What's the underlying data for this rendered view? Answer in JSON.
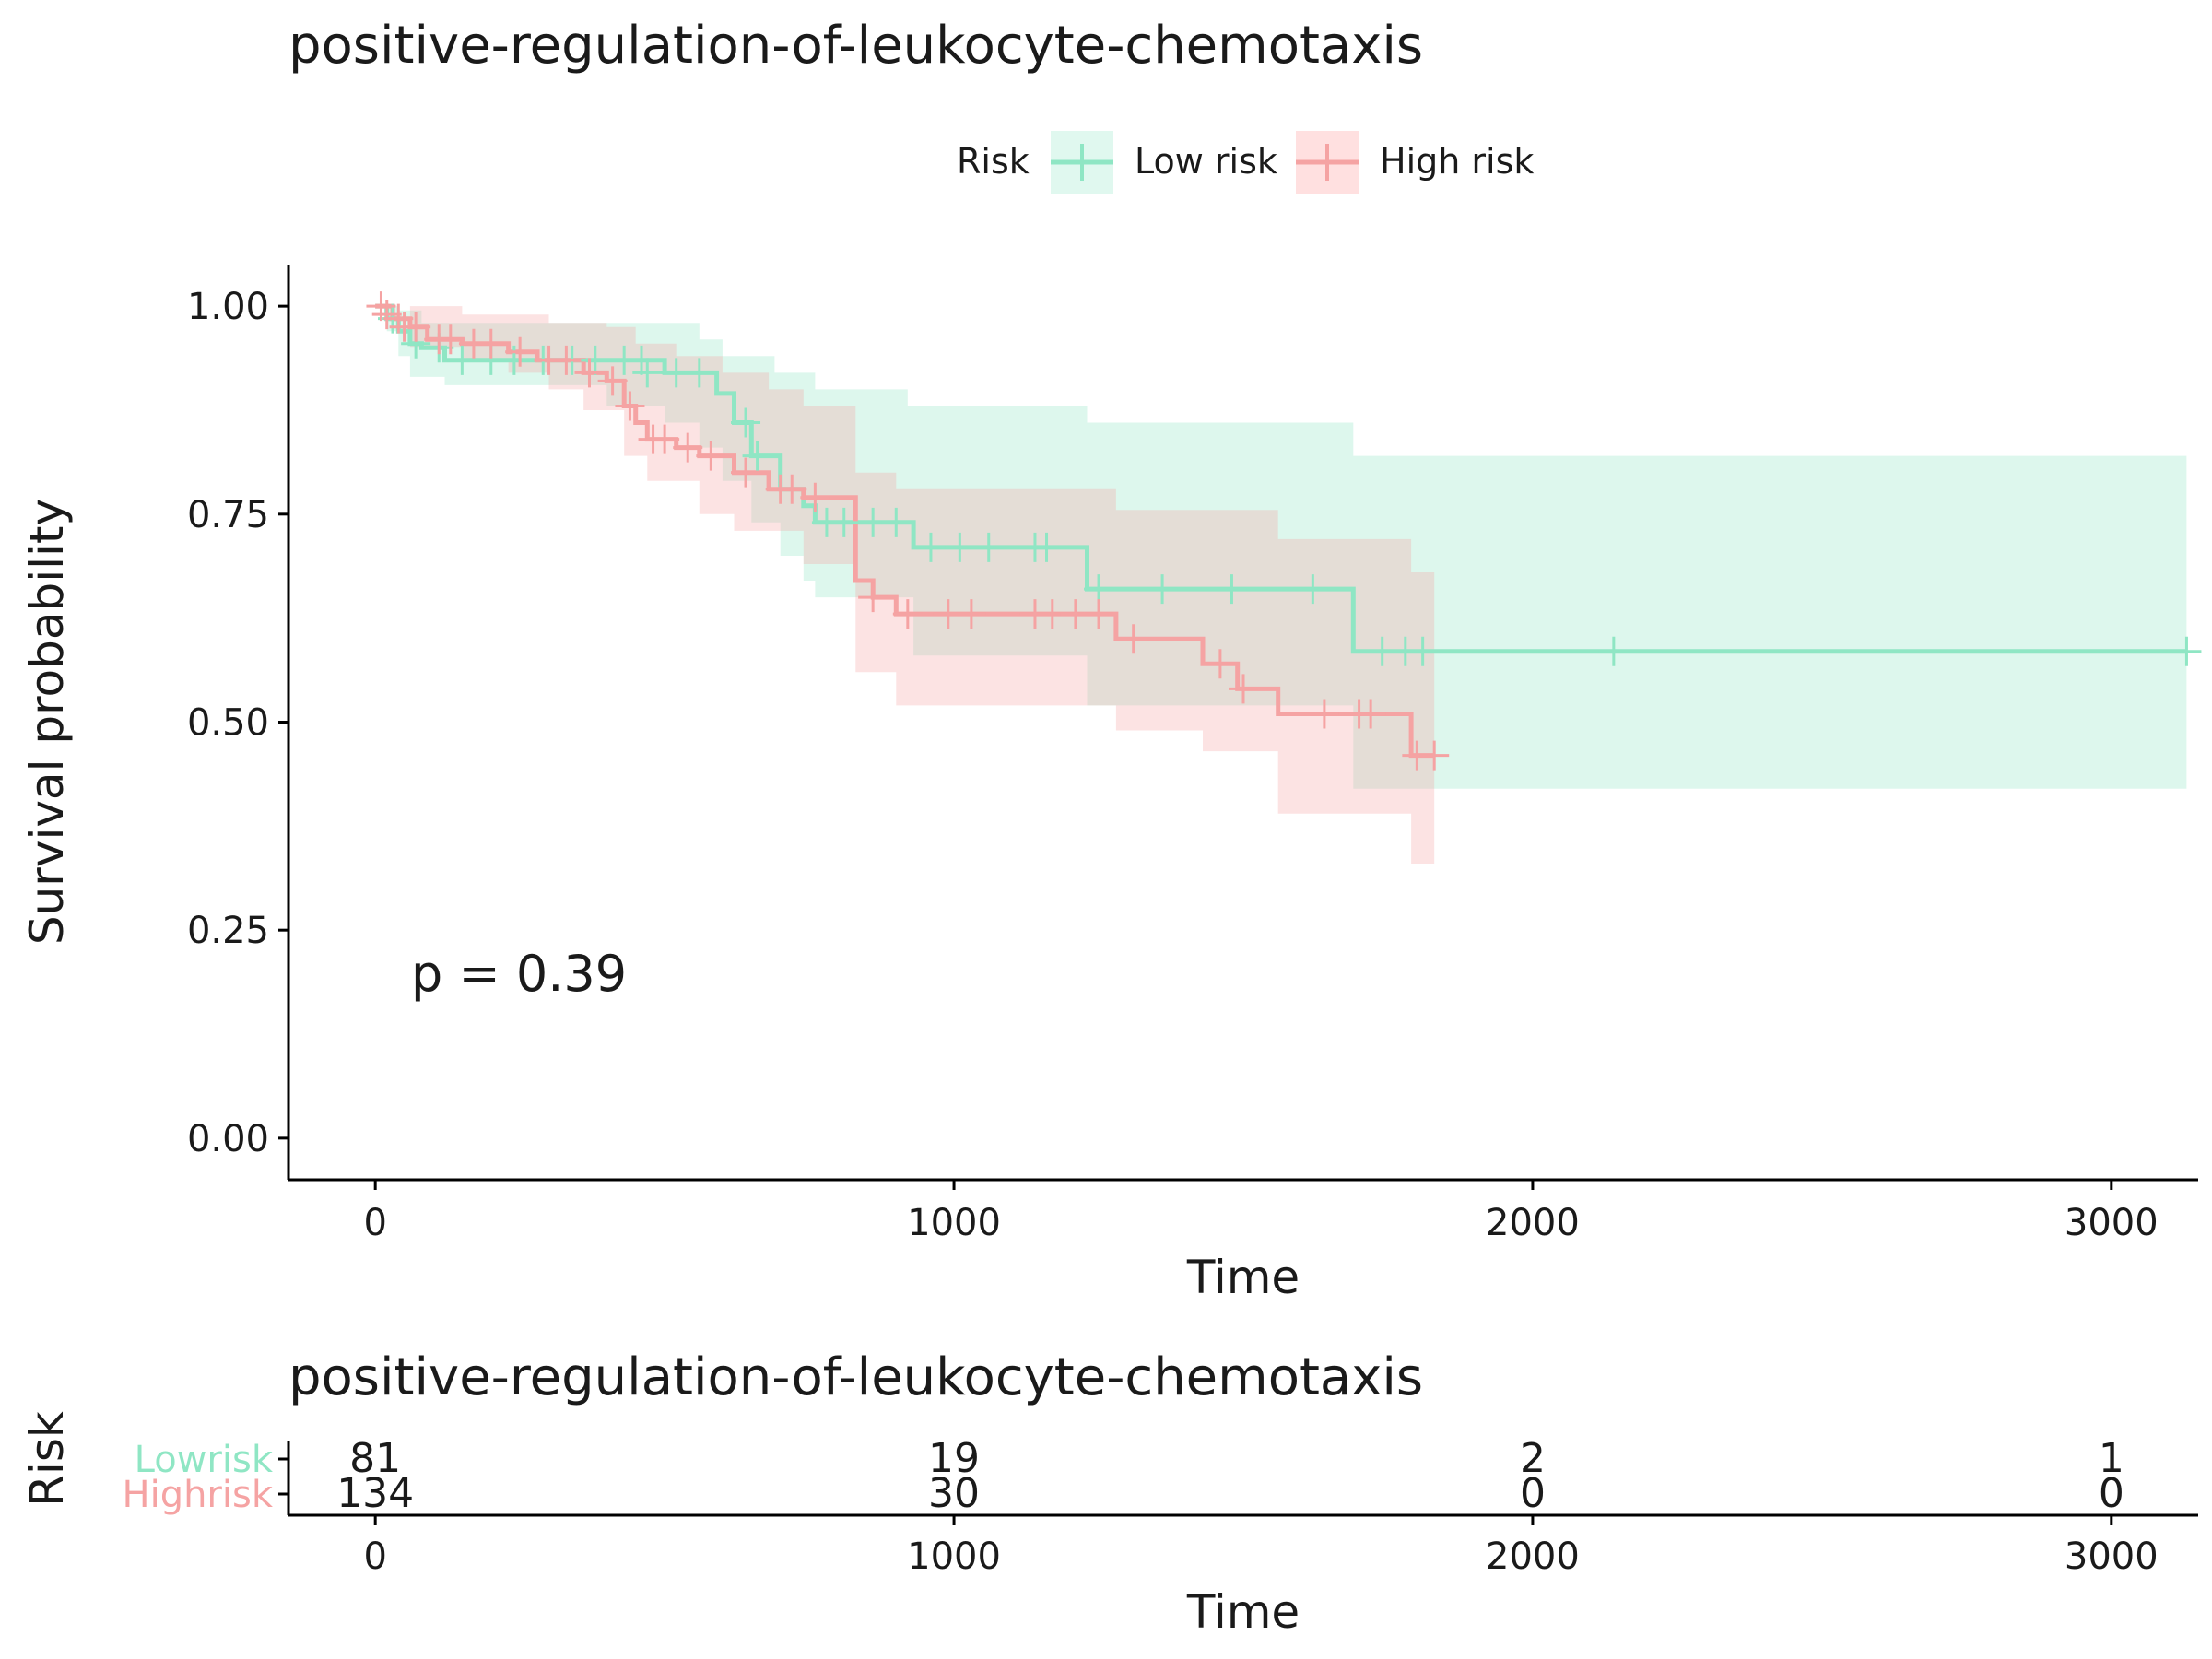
{
  "chart_data": {
    "type": "line",
    "subtype": "kaplan-meier",
    "title": "positive-regulation-of-leukocyte-chemotaxis",
    "xlabel": "Time",
    "ylabel": "Survival probability",
    "xlim": [
      -150,
      3150
    ],
    "ylim": [
      -0.05,
      1.05
    ],
    "xticks": [
      0,
      1000,
      2000,
      3000
    ],
    "yticks": [
      0.0,
      0.25,
      0.5,
      0.75,
      1.0
    ],
    "ytick_labels": [
      "0.00",
      "0.25",
      "0.50",
      "0.75",
      "1.00"
    ],
    "grid": false,
    "legend": {
      "title": "Risk",
      "position": "top"
    },
    "annotation": "p = 0.39",
    "series": [
      {
        "name": "Low risk",
        "color": "#8fe6c4",
        "band_color": "#e0f8ef",
        "steps": [
          [
            0,
            1.0
          ],
          [
            20,
            0.985
          ],
          [
            40,
            0.97
          ],
          [
            60,
            0.955
          ],
          [
            80,
            0.95
          ],
          [
            120,
            0.935
          ],
          [
            400,
            0.935
          ],
          [
            500,
            0.92
          ],
          [
            590,
            0.895
          ],
          [
            620,
            0.86
          ],
          [
            650,
            0.82
          ],
          [
            700,
            0.78
          ],
          [
            740,
            0.76
          ],
          [
            760,
            0.74
          ],
          [
            930,
            0.71
          ],
          [
            1230,
            0.66
          ],
          [
            1690,
            0.585
          ],
          [
            3130,
            0.585
          ]
        ],
        "upper": [
          [
            0,
            1.0
          ],
          [
            40,
            0.995
          ],
          [
            80,
            0.98
          ],
          [
            300,
            0.98
          ],
          [
            450,
            0.98
          ],
          [
            560,
            0.96
          ],
          [
            600,
            0.94
          ],
          [
            690,
            0.92
          ],
          [
            760,
            0.9
          ],
          [
            920,
            0.88
          ],
          [
            1230,
            0.86
          ],
          [
            1690,
            0.82
          ],
          [
            3130,
            0.82
          ]
        ],
        "lower": [
          [
            0,
            1.0
          ],
          [
            20,
            0.97
          ],
          [
            40,
            0.94
          ],
          [
            60,
            0.915
          ],
          [
            120,
            0.905
          ],
          [
            300,
            0.905
          ],
          [
            400,
            0.88
          ],
          [
            500,
            0.86
          ],
          [
            560,
            0.83
          ],
          [
            600,
            0.79
          ],
          [
            650,
            0.74
          ],
          [
            700,
            0.7
          ],
          [
            740,
            0.67
          ],
          [
            760,
            0.65
          ],
          [
            930,
            0.58
          ],
          [
            1230,
            0.52
          ],
          [
            1690,
            0.42
          ],
          [
            3130,
            0.42
          ]
        ],
        "censors": [
          [
            30,
            0.985
          ],
          [
            70,
            0.955
          ],
          [
            110,
            0.95
          ],
          [
            150,
            0.935
          ],
          [
            200,
            0.935
          ],
          [
            240,
            0.935
          ],
          [
            290,
            0.935
          ],
          [
            340,
            0.935
          ],
          [
            380,
            0.935
          ],
          [
            430,
            0.935
          ],
          [
            460,
            0.935
          ],
          [
            470,
            0.92
          ],
          [
            520,
            0.92
          ],
          [
            560,
            0.92
          ],
          [
            640,
            0.86
          ],
          [
            660,
            0.82
          ],
          [
            780,
            0.74
          ],
          [
            810,
            0.74
          ],
          [
            860,
            0.74
          ],
          [
            900,
            0.74
          ],
          [
            960,
            0.71
          ],
          [
            1010,
            0.71
          ],
          [
            1060,
            0.71
          ],
          [
            1140,
            0.71
          ],
          [
            1160,
            0.71
          ],
          [
            1250,
            0.66
          ],
          [
            1360,
            0.66
          ],
          [
            1480,
            0.66
          ],
          [
            1620,
            0.66
          ],
          [
            1740,
            0.585
          ],
          [
            1780,
            0.585
          ],
          [
            1810,
            0.585
          ],
          [
            2140,
            0.585
          ],
          [
            3130,
            0.585
          ]
        ]
      },
      {
        "name": "High risk",
        "color": "#f5a3a3",
        "band_color": "#ffe0e0",
        "steps": [
          [
            0,
            1.0
          ],
          [
            30,
            0.985
          ],
          [
            60,
            0.975
          ],
          [
            90,
            0.96
          ],
          [
            150,
            0.955
          ],
          [
            230,
            0.945
          ],
          [
            280,
            0.935
          ],
          [
            360,
            0.92
          ],
          [
            400,
            0.91
          ],
          [
            430,
            0.88
          ],
          [
            450,
            0.86
          ],
          [
            470,
            0.84
          ],
          [
            520,
            0.83
          ],
          [
            560,
            0.82
          ],
          [
            620,
            0.8
          ],
          [
            680,
            0.78
          ],
          [
            740,
            0.77
          ],
          [
            830,
            0.67
          ],
          [
            860,
            0.65
          ],
          [
            900,
            0.63
          ],
          [
            1280,
            0.6
          ],
          [
            1430,
            0.57
          ],
          [
            1490,
            0.54
          ],
          [
            1560,
            0.51
          ],
          [
            1790,
            0.46
          ],
          [
            1830,
            0.46
          ]
        ],
        "upper": [
          [
            0,
            1.0
          ],
          [
            60,
            1.0
          ],
          [
            150,
            0.99
          ],
          [
            300,
            0.98
          ],
          [
            400,
            0.975
          ],
          [
            450,
            0.955
          ],
          [
            520,
            0.94
          ],
          [
            600,
            0.92
          ],
          [
            680,
            0.9
          ],
          [
            740,
            0.88
          ],
          [
            830,
            0.8
          ],
          [
            900,
            0.78
          ],
          [
            1280,
            0.755
          ],
          [
            1560,
            0.72
          ],
          [
            1790,
            0.68
          ],
          [
            1830,
            0.68
          ]
        ],
        "lower": [
          [
            0,
            1.0
          ],
          [
            60,
            0.95
          ],
          [
            150,
            0.935
          ],
          [
            230,
            0.92
          ],
          [
            300,
            0.9
          ],
          [
            360,
            0.875
          ],
          [
            430,
            0.82
          ],
          [
            470,
            0.79
          ],
          [
            560,
            0.75
          ],
          [
            620,
            0.73
          ],
          [
            740,
            0.69
          ],
          [
            830,
            0.56
          ],
          [
            900,
            0.52
          ],
          [
            1280,
            0.49
          ],
          [
            1430,
            0.465
          ],
          [
            1560,
            0.39
          ],
          [
            1790,
            0.33
          ],
          [
            1830,
            0.33
          ]
        ],
        "censors": [
          [
            10,
            1.0
          ],
          [
            20,
            0.99
          ],
          [
            40,
            0.985
          ],
          [
            50,
            0.975
          ],
          [
            70,
            0.975
          ],
          [
            110,
            0.96
          ],
          [
            130,
            0.96
          ],
          [
            170,
            0.955
          ],
          [
            200,
            0.955
          ],
          [
            250,
            0.945
          ],
          [
            300,
            0.935
          ],
          [
            330,
            0.935
          ],
          [
            370,
            0.92
          ],
          [
            410,
            0.91
          ],
          [
            440,
            0.88
          ],
          [
            480,
            0.84
          ],
          [
            500,
            0.84
          ],
          [
            540,
            0.83
          ],
          [
            580,
            0.82
          ],
          [
            640,
            0.8
          ],
          [
            700,
            0.78
          ],
          [
            720,
            0.78
          ],
          [
            760,
            0.77
          ],
          [
            860,
            0.65
          ],
          [
            920,
            0.63
          ],
          [
            990,
            0.63
          ],
          [
            1030,
            0.63
          ],
          [
            1140,
            0.63
          ],
          [
            1170,
            0.63
          ],
          [
            1210,
            0.63
          ],
          [
            1250,
            0.63
          ],
          [
            1310,
            0.6
          ],
          [
            1460,
            0.57
          ],
          [
            1500,
            0.54
          ],
          [
            1640,
            0.51
          ],
          [
            1700,
            0.51
          ],
          [
            1720,
            0.51
          ],
          [
            1800,
            0.46
          ],
          [
            1830,
            0.46
          ]
        ]
      }
    ]
  },
  "risk_table": {
    "title": "positive-regulation-of-leukocyte-chemotaxis",
    "ylabel": "Risk",
    "xlabel": "Time",
    "times": [
      0,
      1000,
      2000,
      3000
    ],
    "rows": [
      {
        "label_parts": [
          "Low",
          "risk"
        ],
        "color": "#8fe6c4",
        "counts": [
          "81",
          "19",
          "2",
          "1"
        ]
      },
      {
        "label_parts": [
          "High",
          "risk"
        ],
        "color": "#f5a3a3",
        "counts": [
          "134",
          "30",
          "0",
          "0"
        ]
      }
    ]
  }
}
